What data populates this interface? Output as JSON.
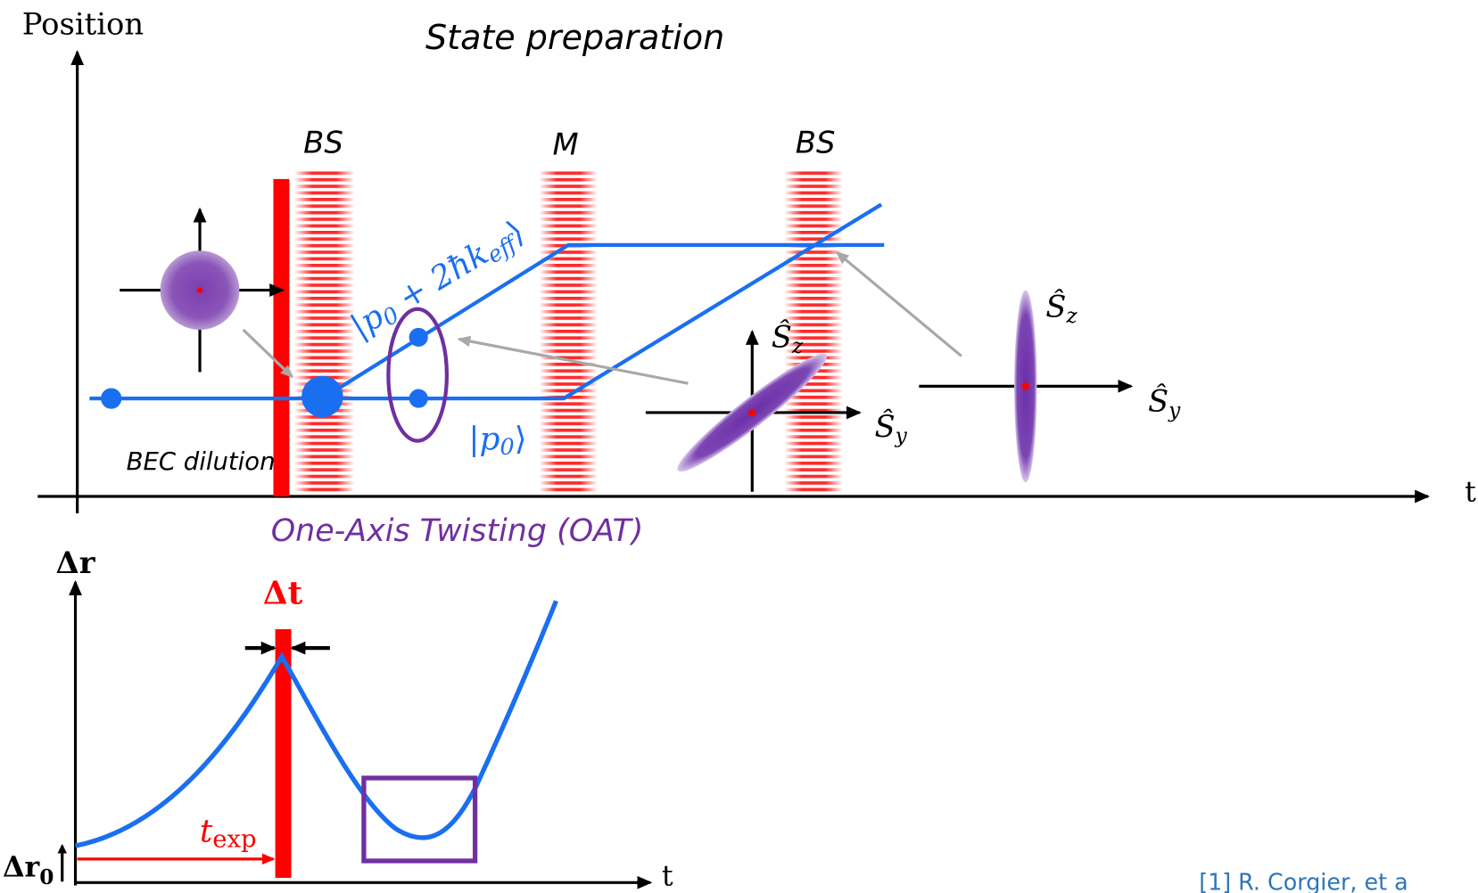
{
  "top_panel": {
    "y_axis_label": "Position",
    "x_axis_label": "t",
    "title": "State preparation",
    "pulses": [
      "BS",
      "M",
      "BS"
    ],
    "upper_state": [
      "|p",
      "0",
      " + 2ħk",
      "eff",
      "⟩"
    ],
    "lower_state": [
      "|p",
      "0",
      "⟩"
    ],
    "dilution_label": "BEC dilution",
    "oat_label": "One-Axis Twisting (OAT)",
    "spin_axes_tilted": {
      "z": [
        "Ŝ",
        "z"
      ],
      "y": [
        "Ŝ",
        "y"
      ]
    },
    "spin_axes_vertical": {
      "z": [
        "Ŝ",
        "z"
      ],
      "y": [
        "Ŝ",
        "y"
      ]
    }
  },
  "bottom_panel": {
    "y_axis_label": "Δr",
    "x_axis_label": "t",
    "width_label": "Δt",
    "time_label": [
      "t",
      "exp"
    ],
    "origin_label": [
      "Δr",
      "0"
    ]
  },
  "footnote": "[1] R. Corgier, et a"
}
